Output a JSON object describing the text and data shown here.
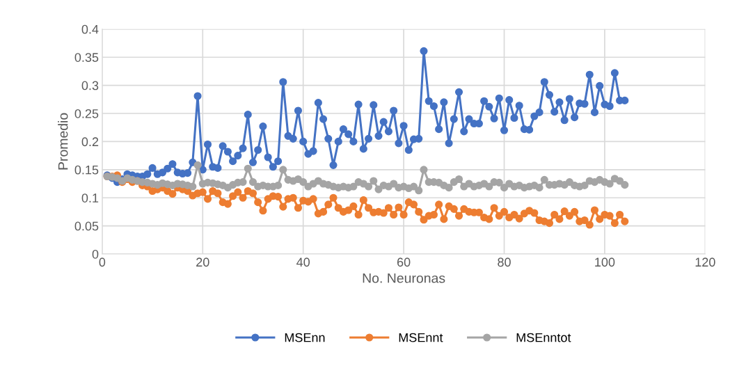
{
  "chart_data": {
    "type": "line",
    "xlabel": "No. Neuronas",
    "ylabel": "Promedio",
    "x": [
      1,
      2,
      3,
      4,
      5,
      6,
      7,
      8,
      9,
      10,
      11,
      12,
      13,
      14,
      15,
      16,
      17,
      18,
      19,
      20,
      21,
      22,
      23,
      24,
      25,
      26,
      27,
      28,
      29,
      30,
      31,
      32,
      33,
      34,
      35,
      36,
      37,
      38,
      39,
      40,
      41,
      42,
      43,
      44,
      45,
      46,
      47,
      48,
      49,
      50,
      51,
      52,
      53,
      54,
      55,
      56,
      57,
      58,
      59,
      60,
      61,
      62,
      63,
      64,
      65,
      66,
      67,
      68,
      69,
      70,
      71,
      72,
      73,
      74,
      75,
      76,
      77,
      78,
      79,
      80,
      81,
      82,
      83,
      84,
      85,
      86,
      87,
      88,
      89,
      90,
      91,
      92,
      93,
      94,
      95,
      96,
      97,
      98,
      99,
      100,
      101,
      102,
      103,
      104
    ],
    "series": [
      {
        "name": "MSEnn",
        "color": "#4472c4",
        "values": [
          0.14,
          0.135,
          0.128,
          0.133,
          0.142,
          0.14,
          0.138,
          0.138,
          0.142,
          0.153,
          0.142,
          0.145,
          0.152,
          0.16,
          0.145,
          0.143,
          0.144,
          0.163,
          0.281,
          0.15,
          0.195,
          0.155,
          0.153,
          0.192,
          0.182,
          0.165,
          0.175,
          0.188,
          0.248,
          0.163,
          0.185,
          0.227,
          0.172,
          0.155,
          0.165,
          0.306,
          0.21,
          0.205,
          0.255,
          0.2,
          0.178,
          0.183,
          0.269,
          0.24,
          0.205,
          0.158,
          0.2,
          0.222,
          0.213,
          0.2,
          0.266,
          0.187,
          0.205,
          0.265,
          0.21,
          0.235,
          0.218,
          0.255,
          0.197,
          0.228,
          0.185,
          0.204,
          0.205,
          0.361,
          0.272,
          0.263,
          0.222,
          0.27,
          0.197,
          0.24,
          0.288,
          0.218,
          0.24,
          0.232,
          0.232,
          0.272,
          0.262,
          0.241,
          0.277,
          0.22,
          0.274,
          0.242,
          0.264,
          0.222,
          0.221,
          0.245,
          0.252,
          0.306,
          0.283,
          0.253,
          0.27,
          0.238,
          0.276,
          0.243,
          0.268,
          0.267,
          0.319,
          0.252,
          0.299,
          0.266,
          0.263,
          0.322,
          0.273,
          0.273
        ]
      },
      {
        "name": "MSEnnt",
        "color": "#ed7d31",
        "values": [
          0.138,
          0.138,
          0.14,
          0.128,
          0.133,
          0.128,
          0.13,
          0.122,
          0.12,
          0.112,
          0.115,
          0.118,
          0.112,
          0.107,
          0.118,
          0.115,
          0.112,
          0.104,
          0.108,
          0.11,
          0.098,
          0.112,
          0.108,
          0.092,
          0.089,
          0.103,
          0.11,
          0.1,
          0.112,
          0.108,
          0.092,
          0.077,
          0.098,
          0.103,
          0.102,
          0.084,
          0.098,
          0.1,
          0.082,
          0.095,
          0.093,
          0.098,
          0.072,
          0.075,
          0.088,
          0.1,
          0.082,
          0.075,
          0.078,
          0.085,
          0.07,
          0.096,
          0.082,
          0.074,
          0.075,
          0.073,
          0.082,
          0.07,
          0.083,
          0.07,
          0.092,
          0.088,
          0.075,
          0.061,
          0.068,
          0.07,
          0.088,
          0.062,
          0.085,
          0.08,
          0.068,
          0.08,
          0.075,
          0.074,
          0.074,
          0.065,
          0.062,
          0.082,
          0.068,
          0.075,
          0.065,
          0.07,
          0.063,
          0.072,
          0.077,
          0.073,
          0.06,
          0.058,
          0.055,
          0.07,
          0.062,
          0.076,
          0.068,
          0.075,
          0.058,
          0.06,
          0.052,
          0.078,
          0.062,
          0.07,
          0.068,
          0.055,
          0.07,
          0.058
        ]
      },
      {
        "name": "MSEnntot",
        "color": "#a5a5a5",
        "values": [
          0.138,
          0.137,
          0.135,
          0.13,
          0.135,
          0.132,
          0.13,
          0.128,
          0.127,
          0.125,
          0.123,
          0.126,
          0.124,
          0.122,
          0.125,
          0.124,
          0.122,
          0.12,
          0.158,
          0.125,
          0.127,
          0.126,
          0.124,
          0.122,
          0.118,
          0.123,
          0.127,
          0.128,
          0.152,
          0.128,
          0.12,
          0.122,
          0.12,
          0.12,
          0.122,
          0.15,
          0.132,
          0.13,
          0.133,
          0.128,
          0.12,
          0.125,
          0.13,
          0.125,
          0.123,
          0.12,
          0.118,
          0.12,
          0.118,
          0.12,
          0.128,
          0.125,
          0.12,
          0.13,
          0.115,
          0.122,
          0.12,
          0.125,
          0.118,
          0.12,
          0.117,
          0.12,
          0.113,
          0.15,
          0.128,
          0.128,
          0.127,
          0.122,
          0.118,
          0.128,
          0.133,
          0.12,
          0.125,
          0.12,
          0.122,
          0.125,
          0.12,
          0.128,
          0.127,
          0.118,
          0.125,
          0.12,
          0.122,
          0.118,
          0.12,
          0.122,
          0.118,
          0.132,
          0.123,
          0.123,
          0.125,
          0.123,
          0.128,
          0.122,
          0.12,
          0.122,
          0.13,
          0.128,
          0.132,
          0.128,
          0.125,
          0.134,
          0.13,
          0.123
        ]
      }
    ],
    "xlim": [
      0,
      120
    ],
    "xticks": [
      0,
      20,
      40,
      60,
      80,
      100,
      120
    ],
    "ylim": [
      0,
      0.4
    ],
    "yticks": [
      0,
      0.05,
      0.1,
      0.15,
      0.2,
      0.25,
      0.3,
      0.35,
      0.4
    ],
    "grid": true,
    "legend": "bottom",
    "marker": "circle",
    "line_style": "solid"
  }
}
